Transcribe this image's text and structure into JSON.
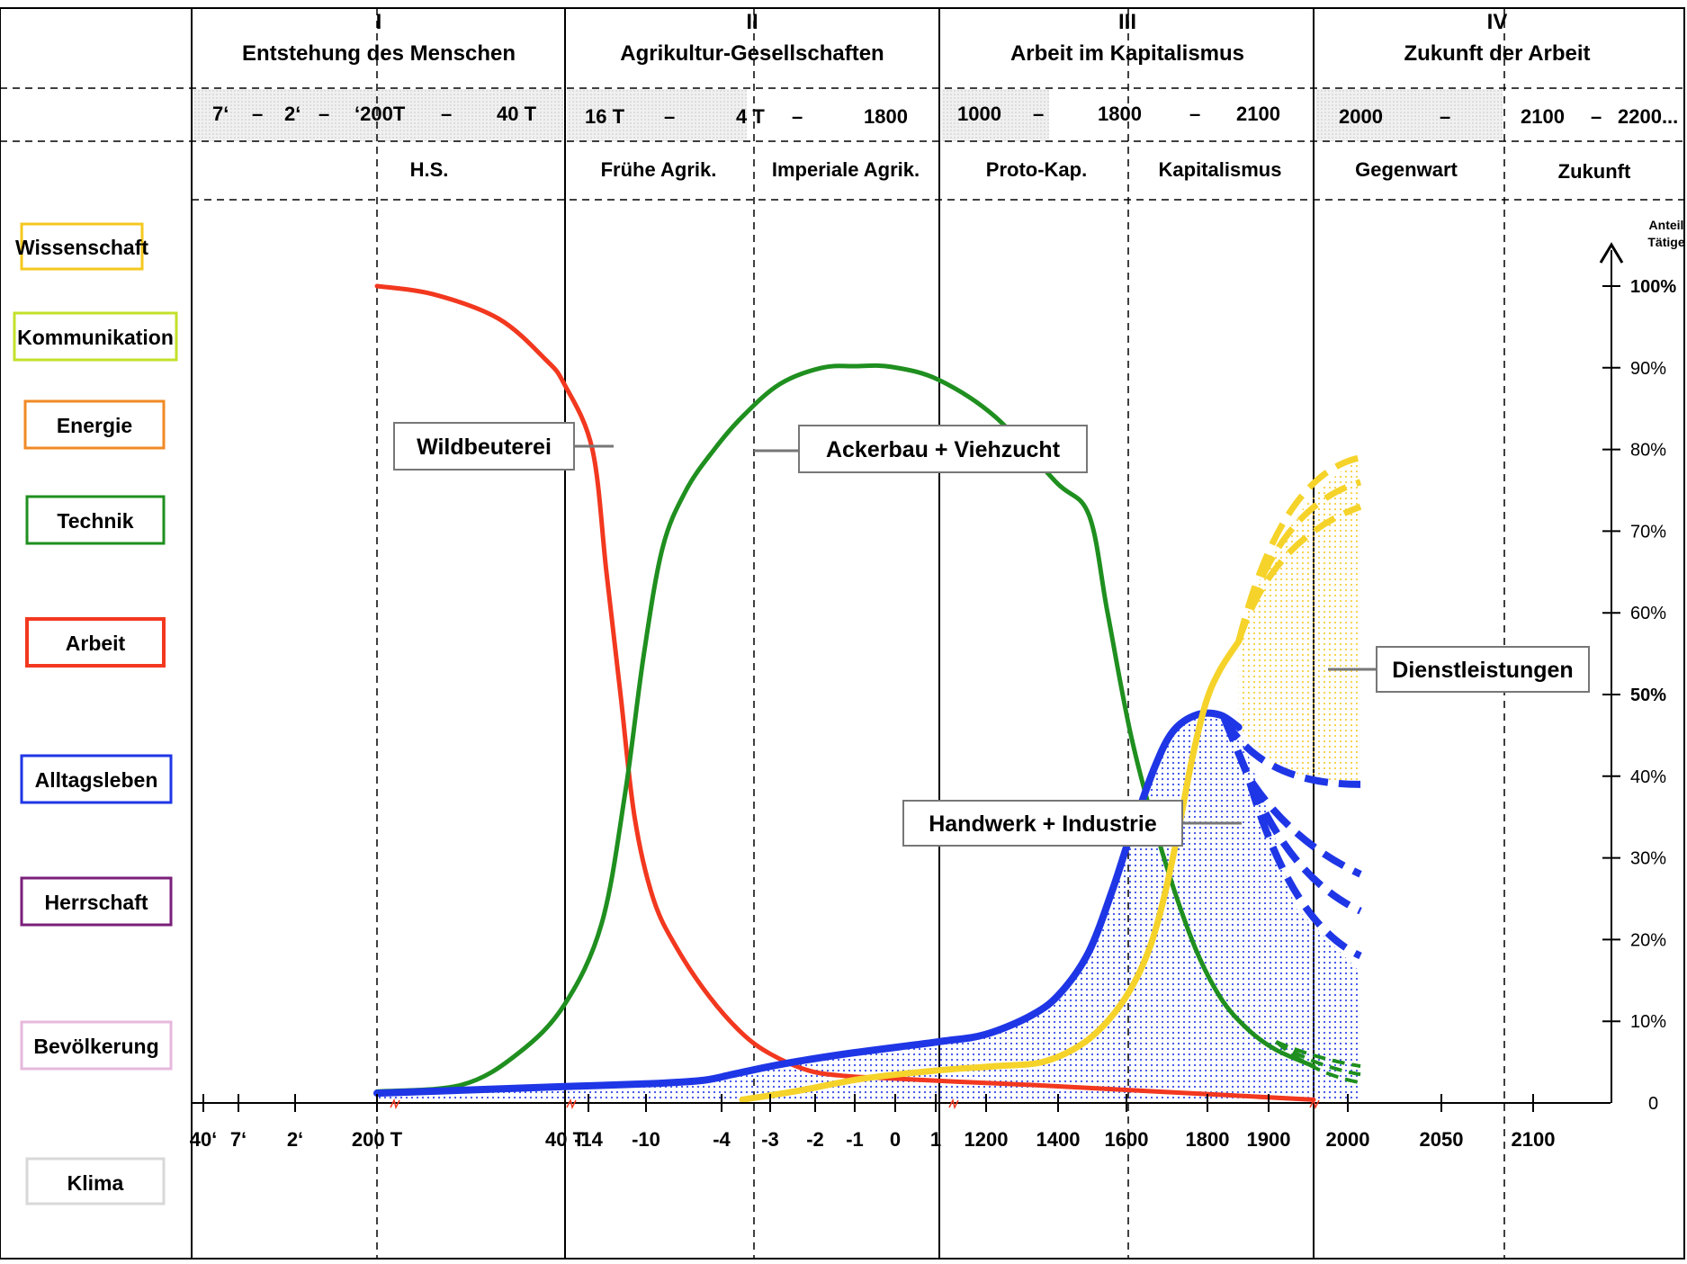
{
  "eras": [
    {
      "num": "I",
      "title": "Entstehung des Menschen",
      "dates": [
        "7‘",
        "–",
        "2‘",
        "–",
        "‘200T",
        "–",
        "40 T"
      ]
    },
    {
      "num": "II",
      "title": "Agrikultur-Gesellschaften",
      "dates": [
        "16 T",
        "–",
        "4 T",
        "–",
        "1800"
      ]
    },
    {
      "num": "III",
      "title": "Arbeit im Kapitalismus",
      "dates": [
        "1000",
        "–",
        "1800",
        "–",
        "2100"
      ]
    },
    {
      "num": "IV",
      "title": "Zukunft der Arbeit",
      "dates": [
        "2000",
        "–",
        "2100",
        "–",
        "2200..."
      ]
    }
  ],
  "subperiods": [
    "H.S.",
    "Frühe Agrik.",
    "Imperiale Agrik.",
    "Proto-Kap.",
    "Kapitalismus",
    "Gegenwart",
    "Zukunft"
  ],
  "categories": [
    {
      "label": "Wissenschaft",
      "color": "#f5c81f"
    },
    {
      "label": "Kommunikation",
      "color": "#c3e02a"
    },
    {
      "label": "Energie",
      "color": "#f08a24"
    },
    {
      "label": "Technik",
      "color": "#1f8f1f"
    },
    {
      "label": "Arbeit",
      "color": "#f2381f"
    },
    {
      "label": "Alltagsleben",
      "color": "#1f36e6"
    },
    {
      "label": "Herrschaft",
      "color": "#7a1f7a"
    },
    {
      "label": "Bevölkerung",
      "color": "#e6b8dd"
    },
    {
      "label": "Klima",
      "color": "#d8d8d8"
    }
  ],
  "chart_data": {
    "type": "line",
    "x_ticks": [
      "40‘",
      "7‘",
      "2‘",
      "200 T",
      "40 T",
      "-14",
      "-10",
      "-4",
      "-3",
      "-2",
      "-1",
      "0",
      "1",
      "1200",
      "1400",
      "1600",
      "1800",
      "1900",
      "2000",
      "2050",
      "2100"
    ],
    "y_axis_label": [
      "Anteil",
      "Tätige"
    ],
    "y_ticks": [
      "0",
      "10%",
      "20%",
      "30%",
      "40%",
      "50%",
      "60%",
      "70%",
      "80%",
      "90%",
      "100%"
    ],
    "ylim": [
      0,
      100
    ],
    "series": [
      {
        "name": "Wildbeuterei",
        "color": "#f2381f",
        "points": [
          [
            0,
            100
          ],
          [
            0.6,
            99
          ],
          [
            1.3,
            96
          ],
          [
            1.8,
            91
          ],
          [
            2.0,
            88
          ],
          [
            2.3,
            80
          ],
          [
            2.45,
            65
          ],
          [
            2.6,
            50
          ],
          [
            2.75,
            35
          ],
          [
            2.95,
            25
          ],
          [
            3.2,
            19
          ],
          [
            3.55,
            13
          ],
          [
            3.9,
            8.5
          ],
          [
            4.2,
            6
          ],
          [
            4.6,
            4
          ],
          [
            5.0,
            3.3
          ],
          [
            5.5,
            3
          ],
          [
            6.2,
            2.6
          ],
          [
            7.0,
            2.2
          ],
          [
            8.0,
            1.6
          ],
          [
            9.0,
            1
          ],
          [
            10.0,
            0.4
          ]
        ]
      },
      {
        "name": "Ackerbau + Viehzucht",
        "color": "#1f8f1f",
        "points": [
          [
            0,
            1.4
          ],
          [
            0.9,
            2.2
          ],
          [
            1.5,
            6
          ],
          [
            2.0,
            12
          ],
          [
            2.4,
            22
          ],
          [
            2.65,
            38
          ],
          [
            2.85,
            55
          ],
          [
            3.05,
            68
          ],
          [
            3.3,
            75
          ],
          [
            3.6,
            80
          ],
          [
            3.9,
            84
          ],
          [
            4.3,
            88
          ],
          [
            4.75,
            90
          ],
          [
            5.1,
            90.2
          ],
          [
            5.5,
            90.1
          ],
          [
            6.0,
            88.5
          ],
          [
            6.6,
            84
          ],
          [
            7.25,
            76
          ],
          [
            7.6,
            72
          ],
          [
            7.8,
            60
          ],
          [
            8.05,
            45
          ],
          [
            8.35,
            32
          ],
          [
            8.7,
            20
          ],
          [
            9.0,
            13
          ],
          [
            9.3,
            9
          ],
          [
            9.6,
            6.5
          ],
          [
            10.0,
            4.5
          ]
        ]
      },
      {
        "name": "Handwerk + Industrie",
        "color": "#1f36e6",
        "points": [
          [
            0,
            1.2
          ],
          [
            1.0,
            1.6
          ],
          [
            2.0,
            2
          ],
          [
            3.0,
            2.4
          ],
          [
            3.5,
            2.8
          ],
          [
            3.8,
            3.5
          ],
          [
            4.3,
            4.7
          ],
          [
            5.0,
            6
          ],
          [
            6.0,
            7.5
          ],
          [
            6.5,
            8.4
          ],
          [
            7.0,
            10.8
          ],
          [
            7.3,
            13.5
          ],
          [
            7.6,
            18.5
          ],
          [
            7.85,
            26
          ],
          [
            8.05,
            33
          ],
          [
            8.3,
            41
          ],
          [
            8.5,
            45.5
          ],
          [
            8.75,
            47.5
          ],
          [
            9.0,
            47.5
          ],
          [
            9.2,
            46
          ]
        ]
      },
      {
        "name": "Dienstleistungen",
        "color": "#f5d32a",
        "points": [
          [
            3.9,
            0.4
          ],
          [
            4.5,
            1.5
          ],
          [
            5.2,
            3
          ],
          [
            6.0,
            4
          ],
          [
            6.6,
            4.5
          ],
          [
            7.1,
            5
          ],
          [
            7.5,
            7
          ],
          [
            7.8,
            10
          ],
          [
            8.05,
            14
          ],
          [
            8.25,
            19
          ],
          [
            8.4,
            25
          ],
          [
            8.55,
            33
          ],
          [
            8.7,
            42
          ],
          [
            8.85,
            49
          ],
          [
            9.0,
            53
          ],
          [
            9.2,
            56.5
          ]
        ]
      }
    ],
    "projections": {
      "Dienstleistungen": [
        73,
        76,
        79
      ],
      "Handwerk + Industrie": [
        39,
        28,
        23.5,
        18
      ],
      "Ackerbau + Viehzucht": [
        2.5,
        3.5,
        4.5
      ]
    }
  }
}
